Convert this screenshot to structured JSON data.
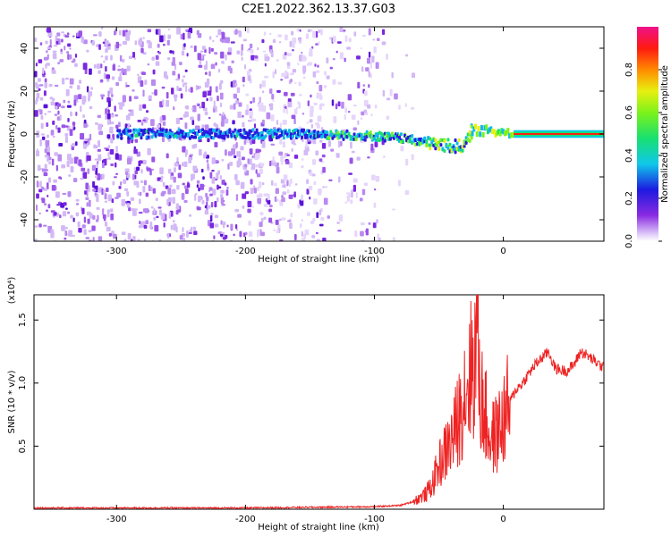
{
  "title": "C2E1.2022.362.13.37.G03",
  "colorbar": {
    "label": "Normalized spectral amplitude",
    "ticks": [
      "0.0",
      "0.2",
      "0.4",
      "0.6",
      "0.8"
    ]
  },
  "chart_data": [
    {
      "type": "heatmap",
      "title": "C2E1.2022.362.13.37.G03",
      "xlabel": "Height of straight line (km)",
      "ylabel": "Frequency (Hz)",
      "xlim": [
        -364,
        78
      ],
      "ylim": [
        -50,
        50
      ],
      "xticks": [
        "-300",
        "-200",
        "-100",
        "0"
      ],
      "yticks": [
        "-40",
        "-20",
        "0",
        "20",
        "40"
      ],
      "colorscale": "rainbow",
      "color_range": [
        0.0,
        1.0
      ],
      "description_series": [
        {
          "name": "signal_ridge",
          "x": [
            -300,
            -250,
            -200,
            -150,
            -100,
            -80,
            -60,
            -40,
            -30,
            -25,
            -10,
            0,
            10,
            78
          ],
          "y": [
            0,
            0,
            0,
            0,
            -1,
            -2,
            -4,
            -6,
            -5,
            2,
            1,
            1,
            0,
            0
          ]
        }
      ]
    },
    {
      "type": "line",
      "xlabel": "Height of straight line (km)",
      "ylabel": "SNR (10 * v/v)",
      "y_scale_label": "(x10⁴)",
      "xlim": [
        -364,
        78
      ],
      "ylim": [
        0,
        1.7
      ],
      "xticks": [
        "-300",
        "-200",
        "-100",
        "0"
      ],
      "yticks": [
        "0.5",
        "1.0",
        "1.5"
      ],
      "series": [
        {
          "color": "#ee2222",
          "x": [
            -364,
            -300,
            -200,
            -100,
            -80,
            -70,
            -60,
            -55,
            -50,
            -45,
            -40,
            -35,
            -30,
            -25,
            -22,
            -20,
            -18,
            -15,
            -10,
            -5,
            0,
            5,
            10,
            15,
            20,
            25,
            30,
            35,
            40,
            45,
            50,
            55,
            60,
            65,
            70,
            78
          ],
          "y": [
            0.01,
            0.01,
            0.01,
            0.02,
            0.03,
            0.06,
            0.12,
            0.2,
            0.35,
            0.45,
            0.55,
            0.7,
            0.95,
            1.1,
            1.2,
            1.55,
            0.9,
            0.8,
            0.55,
            0.6,
            0.7,
            0.85,
            0.95,
            1.0,
            1.08,
            1.15,
            1.2,
            1.25,
            1.12,
            1.1,
            1.1,
            1.15,
            1.25,
            1.22,
            1.18,
            1.12
          ]
        }
      ]
    }
  ]
}
